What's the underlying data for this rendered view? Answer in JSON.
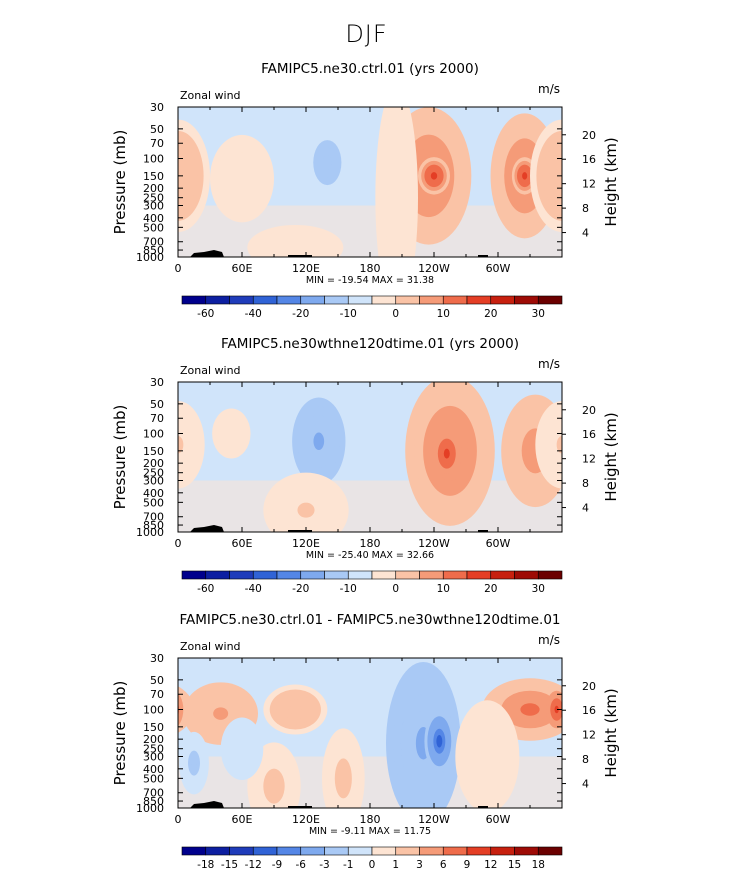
{
  "suptitle": "DJF",
  "chart_data": [
    {
      "type": "heatmap",
      "title": "FAMIPC5.ne30.ctrl.01 (yrs 2000)",
      "left_label": "Zonal wind",
      "units": "m/s",
      "ylabel": "Pressure (mb)",
      "ylabel_right": "Height (km)",
      "xticks": [
        "0",
        "60E",
        "120E",
        "180",
        "120W",
        "60W"
      ],
      "yticks": [
        "30",
        "50",
        "70",
        "100",
        "150",
        "200",
        "250",
        "300",
        "400",
        "500",
        "700",
        "850",
        "1000"
      ],
      "yticks_right": [
        "20",
        "16",
        "12",
        "8",
        "4"
      ],
      "min_max_text": "MIN = -19.54   MAX =  31.38",
      "colorbar_levels": [
        "-60",
        "-40",
        "-20",
        "-10",
        "0",
        "10",
        "20",
        "30"
      ],
      "colorbar_colors": [
        "#00008c",
        "#0d1fa1",
        "#1f3cba",
        "#3063d6",
        "#5486e6",
        "#7ea9ee",
        "#a9c9f5",
        "#d0e4fa",
        "#fde4d3",
        "#fac3a6",
        "#f59b78",
        "#ef6c4b",
        "#e43e25",
        "#c7200f",
        "#9e0b06",
        "#6b0000"
      ],
      "blobs": [
        {
          "lon": 140,
          "p": 110,
          "rx": 22,
          "ry": 0.3,
          "v": -12
        },
        {
          "lon": 20,
          "p": 70,
          "rx": 14,
          "ry": 0.12,
          "v": -3
        },
        {
          "lon": 235,
          "p": 150,
          "rx": 40,
          "ry": 0.55,
          "v": 24
        },
        {
          "lon": 240,
          "p": 150,
          "rx": 15,
          "ry": 0.15,
          "v": 31
        },
        {
          "lon": 325,
          "p": 150,
          "rx": 32,
          "ry": 0.5,
          "v": 24
        },
        {
          "lon": 325,
          "p": 150,
          "rx": 12,
          "ry": 0.15,
          "v": 31
        },
        {
          "lon": 0,
          "p": 150,
          "rx": 30,
          "ry": 0.45,
          "v": 14
        },
        {
          "lon": 60,
          "p": 160,
          "rx": 30,
          "ry": 0.35,
          "v": 5
        },
        {
          "lon": 110,
          "p": 800,
          "rx": 45,
          "ry": 0.18,
          "v": 6
        },
        {
          "lon": 205,
          "p": 250,
          "rx": 20,
          "ry": 0.9,
          "v": 6
        }
      ]
    },
    {
      "type": "heatmap",
      "title": "FAMIPC5.ne30wthne120dtime.01 (yrs 2000)",
      "left_label": "Zonal wind",
      "units": "m/s",
      "ylabel": "Pressure (mb)",
      "ylabel_right": "Height (km)",
      "xticks": [
        "0",
        "60E",
        "120E",
        "180",
        "120W",
        "60W"
      ],
      "yticks": [
        "30",
        "50",
        "70",
        "100",
        "150",
        "200",
        "250",
        "300",
        "400",
        "500",
        "700",
        "850",
        "1000"
      ],
      "yticks_right": [
        "20",
        "16",
        "12",
        "8",
        "4"
      ],
      "min_max_text": "MIN = -25.40   MAX =  32.66",
      "colorbar_levels": [
        "-60",
        "-40",
        "-20",
        "-10",
        "0",
        "10",
        "20",
        "30"
      ],
      "colorbar_colors": [
        "#00008c",
        "#0d1fa1",
        "#1f3cba",
        "#3063d6",
        "#5486e6",
        "#7ea9ee",
        "#a9c9f5",
        "#d0e4fa",
        "#fde4d3",
        "#fac3a6",
        "#f59b78",
        "#ef6c4b",
        "#e43e25",
        "#c7200f",
        "#9e0b06",
        "#6b0000"
      ],
      "blobs": [
        {
          "lon": 132,
          "p": 120,
          "rx": 25,
          "ry": 0.35,
          "v": -16
        },
        {
          "lon": 255,
          "p": 150,
          "rx": 42,
          "ry": 0.6,
          "v": 24
        },
        {
          "lon": 252,
          "p": 160,
          "rx": 14,
          "ry": 0.2,
          "v": 32
        },
        {
          "lon": 335,
          "p": 150,
          "rx": 32,
          "ry": 0.45,
          "v": 20
        },
        {
          "lon": 0,
          "p": 130,
          "rx": 25,
          "ry": 0.35,
          "v": 8
        },
        {
          "lon": 120,
          "p": 600,
          "rx": 40,
          "ry": 0.3,
          "v": 8
        },
        {
          "lon": 50,
          "p": 100,
          "rx": 18,
          "ry": 0.2,
          "v": 4
        }
      ]
    },
    {
      "type": "heatmap",
      "title": "FAMIPC5.ne30.ctrl.01 - FAMIPC5.ne30wthne120dtime.01",
      "left_label": "Zonal wind",
      "units": "m/s",
      "ylabel": "Pressure (mb)",
      "ylabel_right": "Height (km)",
      "xticks": [
        "0",
        "60E",
        "120E",
        "180",
        "120W",
        "60W"
      ],
      "yticks": [
        "30",
        "50",
        "70",
        "100",
        "150",
        "200",
        "250",
        "300",
        "400",
        "500",
        "700",
        "850",
        "1000"
      ],
      "yticks_right": [
        "20",
        "16",
        "12",
        "8",
        "4"
      ],
      "min_max_text": "MIN =  -9.11   MAX =  11.75",
      "colorbar_levels": [
        "-18",
        "-15",
        "-12",
        "-9",
        "-6",
        "-3",
        "-1",
        "0",
        "1",
        "3",
        "6",
        "9",
        "12",
        "15",
        "18"
      ],
      "colorbar_colors": [
        "#00008c",
        "#0d1fa1",
        "#1f3cba",
        "#3063d6",
        "#5486e6",
        "#7ea9ee",
        "#a9c9f5",
        "#d0e4fa",
        "#fde4d3",
        "#fac3a6",
        "#f59b78",
        "#ef6c4b",
        "#e43e25",
        "#c7200f",
        "#9e0b06",
        "#6b0000"
      ],
      "blobs": [
        {
          "lon": 120,
          "p": 40,
          "rx": 90,
          "ry": 0.3,
          "v": -2
        },
        {
          "lon": 40,
          "p": 110,
          "rx": 35,
          "ry": 0.25,
          "v": 5
        },
        {
          "lon": 110,
          "p": 100,
          "rx": 30,
          "ry": 0.2,
          "v": 4
        },
        {
          "lon": 330,
          "p": 100,
          "rx": 45,
          "ry": 0.25,
          "v": 7
        },
        {
          "lon": 355,
          "p": 100,
          "rx": 10,
          "ry": 0.15,
          "v": 10
        },
        {
          "lon": 230,
          "p": 220,
          "rx": 35,
          "ry": 0.65,
          "v": -5
        },
        {
          "lon": 245,
          "p": 210,
          "rx": 14,
          "ry": 0.25,
          "v": -9
        },
        {
          "lon": 15,
          "p": 350,
          "rx": 14,
          "ry": 0.25,
          "v": -3
        },
        {
          "lon": 90,
          "p": 600,
          "rx": 25,
          "ry": 0.35,
          "v": 3
        },
        {
          "lon": 155,
          "p": 500,
          "rx": 20,
          "ry": 0.4,
          "v": 3
        },
        {
          "lon": 290,
          "p": 300,
          "rx": 30,
          "ry": 0.45,
          "v": 2
        },
        {
          "lon": 60,
          "p": 250,
          "rx": 20,
          "ry": 0.25,
          "v": -1
        }
      ]
    }
  ]
}
